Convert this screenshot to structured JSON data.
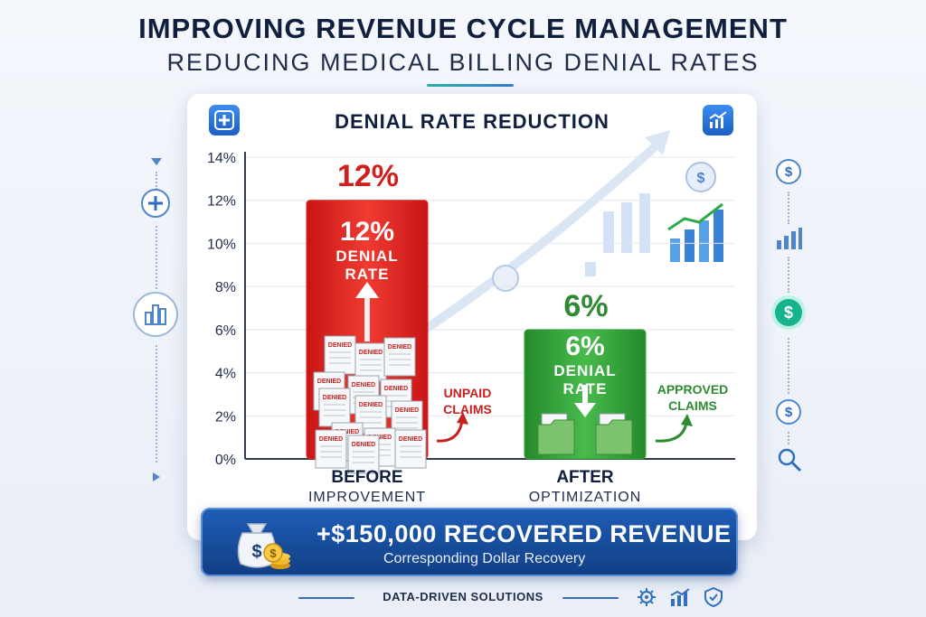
{
  "header": {
    "title": "IMPROVING REVENUE CYCLE MANAGEMENT",
    "subtitle": "REDUCING MEDICAL BILLING DENIAL RATES"
  },
  "chart_data": {
    "type": "bar",
    "title": "DENIAL RATE REDUCTION",
    "categories": [
      "BEFORE IMPROVEMENT",
      "AFTER OPTIMIZATION"
    ],
    "category_main": [
      "BEFORE",
      "AFTER"
    ],
    "category_sub": [
      "IMPROVEMENT",
      "OPTIMIZATION"
    ],
    "values": [
      12,
      6
    ],
    "value_labels": [
      "12%",
      "6%"
    ],
    "bar_text": [
      "DENIAL",
      "RATE"
    ],
    "bar_colors": [
      "#e2201f",
      "#34a33b"
    ],
    "ylim": [
      0,
      14
    ],
    "yticks": [
      0,
      2,
      4,
      6,
      8,
      10,
      12,
      14
    ],
    "ytick_labels": [
      "0%",
      "2%",
      "4%",
      "6%",
      "8%",
      "10%",
      "12%",
      "14%"
    ],
    "grid": true,
    "annotations": {
      "before": "UNPAID CLAIMS",
      "after": "APPROVED CLAIMS",
      "document_stamp": "DENIED"
    }
  },
  "banner": {
    "headline": "+$150,000 RECOVERED REVENUE",
    "subtext": "Corresponding Dollar Recovery"
  },
  "footer": {
    "label": "DATA-DRIVEN SOLUTIONS"
  },
  "colors": {
    "accent_blue": "#1e5db5",
    "before_red": "#e2201f",
    "after_green": "#34a33b",
    "title_navy": "#0f1f3d"
  },
  "icons": {
    "card_left": "medical-cross-icon",
    "card_right": "growth-chart-icon",
    "banner": "money-bag-icon",
    "sidebar_left": [
      "plus-icon",
      "building-chart-icon"
    ],
    "sidebar_right": [
      "dollar-icon",
      "bar-chart-icon",
      "dollar-active-icon",
      "dollar-icon",
      "search-icon"
    ],
    "footer": [
      "gear-icon",
      "chart-icon",
      "shield-icon"
    ]
  }
}
